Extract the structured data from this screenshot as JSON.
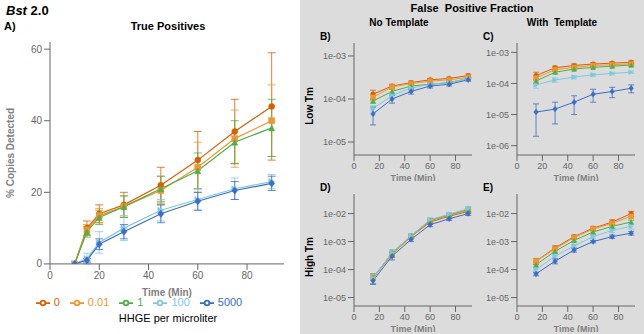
{
  "title": "Bst 2.0",
  "subtitle": "False  Positive Fraction",
  "column_labels": [
    "No Template",
    "With  Template"
  ],
  "row_labels": [
    "Low Tm",
    "High Tm"
  ],
  "chart_data": [
    {
      "type": "line",
      "title": "True Positives",
      "annotations": [
        "A)"
      ],
      "x_label": "Time (Min)",
      "y_label": "% Copies Detected",
      "legend": "bottom",
      "legend_title": "HHGE per microliter",
      "x": [
        10,
        15,
        20,
        30,
        45,
        60,
        75,
        90
      ],
      "xlim": [
        0,
        95
      ],
      "xticks": [
        0,
        20,
        40,
        60,
        80
      ],
      "ylim": [
        0,
        62
      ],
      "yticks": [
        0,
        20,
        40,
        60
      ],
      "series": [
        {
          "name": "0",
          "color": "#D95F02",
          "marker": "circle",
          "values": [
            0.0,
            10.0,
            14.0,
            16.5,
            22.0,
            29.0,
            37.0,
            44.0
          ],
          "errors": [
            0.0,
            2.0,
            2.5,
            3.5,
            5.0,
            8.0,
            9.0,
            15.0
          ]
        },
        {
          "name": "0.01",
          "color": "#F0962E",
          "marker": "square",
          "values": [
            0.0,
            9.5,
            13.5,
            16.0,
            20.5,
            27.0,
            35.0,
            40.0
          ],
          "errors": [
            0.0,
            1.5,
            2.0,
            3.0,
            4.0,
            7.0,
            8.0,
            10.0
          ]
        },
        {
          "name": "1",
          "color": "#4DAF4A",
          "marker": "triangle_up",
          "values": [
            0.0,
            9.0,
            13.0,
            16.0,
            21.0,
            26.0,
            34.0,
            38.0
          ],
          "errors": [
            0.0,
            1.5,
            2.0,
            3.0,
            3.5,
            5.0,
            6.0,
            8.0
          ]
        },
        {
          "name": "100",
          "color": "#7EC8E3",
          "marker": "triangle_right",
          "values": [
            0.0,
            1.5,
            6.0,
            10.0,
            15.0,
            18.0,
            21.0,
            23.0
          ],
          "errors": [
            0.0,
            1.5,
            3.0,
            3.5,
            3.0,
            3.0,
            3.0,
            2.0
          ]
        },
        {
          "name": "5000",
          "color": "#3A6CC8",
          "marker": "diamond",
          "values": [
            0.0,
            1.0,
            5.5,
            9.0,
            14.0,
            17.5,
            20.5,
            22.5
          ],
          "errors": [
            0.0,
            0.5,
            1.5,
            2.0,
            2.5,
            2.5,
            2.5,
            2.0
          ]
        }
      ]
    },
    {
      "type": "line",
      "annotations": [
        "B)"
      ],
      "x_label": "Time (Min)",
      "log": "y",
      "x": [
        15,
        30,
        45,
        60,
        75,
        90
      ],
      "xlim": [
        0,
        93
      ],
      "xticks": [
        0,
        20,
        40,
        60,
        80
      ],
      "ylim": [
        5e-06,
        0.002
      ],
      "yticks": [
        {
          "value": 1e-05,
          "label": "1e-05"
        },
        {
          "value": 0.0001,
          "label": "1e-04"
        },
        {
          "value": 0.001,
          "label": "1e-03"
        }
      ],
      "series": [
        {
          "name": "0",
          "color": "#D95F02",
          "marker": "circle",
          "values": [
            0.00013,
            0.0002,
            0.00024,
            0.00028,
            0.0003,
            0.00035
          ],
          "errors": [
            3e-05,
            2e-05,
            2e-05,
            2e-05,
            2e-05,
            3e-05
          ]
        },
        {
          "name": "0.01",
          "color": "#F0962E",
          "marker": "square",
          "values": [
            0.00011,
            0.00019,
            0.00023,
            0.00026,
            0.00028,
            0.00032
          ],
          "errors": [
            2e-05,
            2e-05,
            2e-05,
            2e-05,
            2e-05,
            2e-05
          ]
        },
        {
          "name": "1",
          "color": "#4DAF4A",
          "marker": "triangle_up",
          "values": [
            9e-05,
            0.00015,
            0.0002,
            0.00022,
            0.00024,
            0.0003
          ],
          "errors": [
            1e-05,
            2e-05,
            2e-05,
            2e-05,
            2e-05,
            2e-05
          ]
        },
        {
          "name": "100",
          "color": "#7EC8E3",
          "marker": "triangle_right",
          "values": [
            6e-05,
            0.00012,
            0.00018,
            0.00022,
            0.00024,
            0.0003
          ],
          "errors": [
            1e-05,
            2e-05,
            2e-05,
            2e-05,
            2e-05,
            2e-05
          ]
        },
        {
          "name": "5000",
          "color": "#3A6CC8",
          "marker": "diamond",
          "values": [
            4.5e-05,
            0.0001,
            0.00015,
            0.0002,
            0.00022,
            0.00028
          ],
          "errors": [
            2e-05,
            2e-05,
            2e-05,
            2e-05,
            2e-05,
            2e-05
          ]
        }
      ]
    },
    {
      "type": "line",
      "annotations": [
        "C)"
      ],
      "x_label": "Time (Min)",
      "log": "y",
      "x": [
        15,
        30,
        45,
        60,
        75,
        90
      ],
      "xlim": [
        0,
        93
      ],
      "xticks": [
        0,
        20,
        40,
        60,
        80
      ],
      "ylim": [
        5e-07,
        0.002
      ],
      "yticks": [
        {
          "value": 1e-06,
          "label": "1e-06"
        },
        {
          "value": 1e-05,
          "label": "1e-05"
        },
        {
          "value": 0.0001,
          "label": "1e-04"
        },
        {
          "value": 0.001,
          "label": "1e-03"
        }
      ],
      "series": [
        {
          "name": "0",
          "color": "#D95F02",
          "marker": "circle",
          "values": [
            0.00018,
            0.00032,
            0.00038,
            0.00042,
            0.00045,
            0.00048
          ],
          "errors": [
            5e-05,
            4e-05,
            4e-05,
            4e-05,
            4e-05,
            5e-05
          ]
        },
        {
          "name": "0.01",
          "color": "#F0962E",
          "marker": "square",
          "values": [
            0.00015,
            0.00028,
            0.00033,
            0.00038,
            0.0004,
            0.00043
          ],
          "errors": [
            3e-05,
            3e-05,
            3e-05,
            3e-05,
            3e-05,
            3e-05
          ]
        },
        {
          "name": "1",
          "color": "#4DAF4A",
          "marker": "triangle_up",
          "values": [
            0.00012,
            0.00023,
            0.00029,
            0.00033,
            0.00036,
            0.00039
          ],
          "errors": [
            2e-05,
            2e-05,
            2e-05,
            2e-05,
            2e-05,
            3e-05
          ]
        },
        {
          "name": "100",
          "color": "#7EC8E3",
          "marker": "triangle_right",
          "values": [
            9e-05,
            0.00013,
            0.00016,
            0.00019,
            0.00021,
            0.00023
          ],
          "errors": [
            2e-05,
            2e-05,
            2e-05,
            2e-05,
            2e-05,
            2e-05
          ]
        },
        {
          "name": "5000",
          "color": "#3A6CC8",
          "marker": "diamond",
          "values": [
            1.2e-05,
            1.5e-05,
            2.5e-05,
            4.5e-05,
            5.5e-05,
            7e-05
          ],
          "errors": [
            1e-05,
            1e-05,
            1.5e-05,
            2e-05,
            2e-05,
            2e-05
          ]
        }
      ]
    },
    {
      "type": "line",
      "annotations": [
        "D)"
      ],
      "x_label": "Time (Min)",
      "log": "y",
      "x": [
        15,
        30,
        45,
        60,
        75,
        90
      ],
      "xlim": [
        0,
        93
      ],
      "xticks": [
        0,
        20,
        40,
        60,
        80
      ],
      "ylim": [
        5e-06,
        0.05
      ],
      "yticks": [
        {
          "value": 1e-05,
          "label": "1e-05"
        },
        {
          "value": 0.0001,
          "label": "1e-04"
        },
        {
          "value": 0.001,
          "label": "1e-03"
        },
        {
          "value": 0.01,
          "label": "1e-02"
        }
      ],
      "series": [
        {
          "name": "0",
          "color": "#D95F02",
          "marker": "circle",
          "values": [
            5e-05,
            0.00035,
            0.0015,
            0.005,
            0.008,
            0.012
          ],
          "errors": [
            2e-05,
            8e-05,
            0.0002,
            0.0008,
            0.001,
            0.002
          ]
        },
        {
          "name": "0.01",
          "color": "#F0962E",
          "marker": "square",
          "values": [
            5e-05,
            0.00035,
            0.0015,
            0.0055,
            0.0085,
            0.013
          ],
          "errors": [
            2e-05,
            8e-05,
            0.0002,
            0.0008,
            0.001,
            0.002
          ]
        },
        {
          "name": "1",
          "color": "#4DAF4A",
          "marker": "triangle_up",
          "values": [
            5e-05,
            0.0004,
            0.0016,
            0.0058,
            0.009,
            0.014
          ],
          "errors": [
            2e-05,
            0.0001,
            0.0003,
            0.001,
            0.0015,
            0.003
          ]
        },
        {
          "name": "100",
          "color": "#7EC8E3",
          "marker": "triangle_right",
          "values": [
            5e-05,
            0.0004,
            0.0016,
            0.006,
            0.0095,
            0.015
          ],
          "errors": [
            2e-05,
            0.0001,
            0.0003,
            0.001,
            0.0015,
            0.003
          ]
        },
        {
          "name": "5000",
          "color": "#3A6CC8",
          "marker": "diamond",
          "values": [
            4e-05,
            0.0003,
            0.0012,
            0.004,
            0.0065,
            0.01
          ],
          "errors": [
            1e-05,
            8e-05,
            0.0002,
            0.0006,
            0.0008,
            0.0015
          ]
        }
      ]
    },
    {
      "type": "line",
      "annotations": [
        "E)"
      ],
      "x_label": "Time (Min)",
      "log": "y",
      "x": [
        15,
        30,
        45,
        60,
        75,
        90
      ],
      "xlim": [
        0,
        93
      ],
      "xticks": [
        0,
        20,
        40,
        60,
        80
      ],
      "ylim": [
        5e-06,
        0.05
      ],
      "yticks": [
        {
          "value": 1e-05,
          "label": "1e-05"
        },
        {
          "value": 0.0001,
          "label": "1e-04"
        },
        {
          "value": 0.001,
          "label": "1e-03"
        },
        {
          "value": 0.01,
          "label": "1e-02"
        }
      ],
      "series": [
        {
          "name": "0",
          "color": "#D95F02",
          "marker": "circle",
          "values": [
            0.0002,
            0.0006,
            0.0015,
            0.003,
            0.005,
            0.01
          ],
          "errors": [
            5e-05,
            0.0001,
            0.0002,
            0.0005,
            0.001,
            0.002
          ]
        },
        {
          "name": "0.01",
          "color": "#F0962E",
          "marker": "square",
          "values": [
            0.0002,
            0.00055,
            0.0014,
            0.0028,
            0.0045,
            0.008
          ],
          "errors": [
            4e-05,
            8e-05,
            0.0002,
            0.0004,
            0.0008,
            0.0015
          ]
        },
        {
          "name": "1",
          "color": "#4DAF4A",
          "marker": "triangle_up",
          "values": [
            0.00015,
            0.00045,
            0.0011,
            0.0022,
            0.0035,
            0.005
          ],
          "errors": [
            3e-05,
            6e-05,
            0.0001,
            0.0003,
            0.0005,
            0.0008
          ]
        },
        {
          "name": "100",
          "color": "#7EC8E3",
          "marker": "triangle_right",
          "values": [
            0.0001,
            0.0003,
            0.0007,
            0.0015,
            0.0025,
            0.0035
          ],
          "errors": [
            2e-05,
            5e-05,
            0.0001,
            0.0002,
            0.0004,
            0.0007
          ]
        },
        {
          "name": "5000",
          "color": "#3A6CC8",
          "marker": "diamond",
          "values": [
            7e-05,
            0.0002,
            0.0005,
            0.001,
            0.0015,
            0.002
          ],
          "errors": [
            1e-05,
            4e-05,
            8e-05,
            0.0001,
            0.0002,
            0.0003
          ]
        }
      ]
    }
  ]
}
